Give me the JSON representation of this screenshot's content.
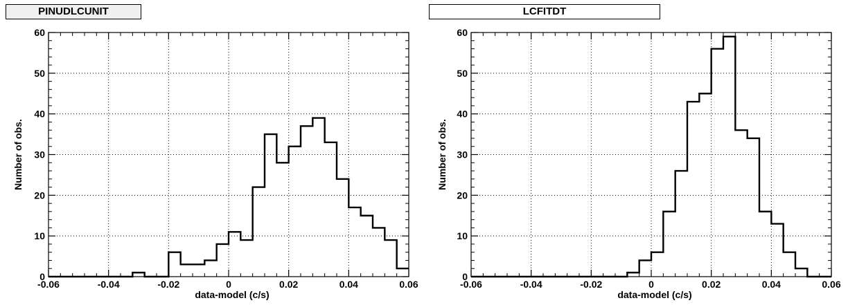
{
  "chart_data": [
    {
      "type": "bar",
      "title": "PINUDLCUNIT",
      "xlabel": "data-model (c/s)",
      "ylabel": "Number of obs.",
      "xlim": [
        -0.06,
        0.06
      ],
      "ylim": [
        0,
        60
      ],
      "xticks": [
        -0.06,
        -0.04,
        -0.02,
        0,
        0.02,
        0.04,
        0.06
      ],
      "xtick_labels": [
        "-0.06",
        "-0.04",
        "-0.02",
        "0",
        "0.02",
        "0.04",
        "0.06"
      ],
      "yticks": [
        0,
        10,
        20,
        30,
        40,
        50,
        60
      ],
      "ytick_labels": [
        "0",
        "10",
        "20",
        "30",
        "40",
        "50",
        "60"
      ],
      "grid": true,
      "bin_width": 0.004,
      "bin_start": -0.06,
      "values": [
        0,
        0,
        0,
        0,
        0,
        0,
        0,
        1,
        0,
        0,
        6,
        3,
        3,
        4,
        8,
        11,
        9,
        22,
        35,
        28,
        32,
        37,
        39,
        33,
        24,
        17,
        15,
        12,
        9,
        2
      ]
    },
    {
      "type": "bar",
      "title": "LCFITDT",
      "xlabel": "data-model (c/s)",
      "ylabel": "Number of obs.",
      "xlim": [
        -0.06,
        0.06
      ],
      "ylim": [
        0,
        60
      ],
      "xticks": [
        -0.06,
        -0.04,
        -0.02,
        0,
        0.02,
        0.04,
        0.06
      ],
      "xtick_labels": [
        "-0.06",
        "-0.04",
        "-0.02",
        "0",
        "0.02",
        "0.04",
        "0.06"
      ],
      "yticks": [
        0,
        10,
        20,
        30,
        40,
        50,
        60
      ],
      "ytick_labels": [
        "0",
        "10",
        "20",
        "30",
        "40",
        "50",
        "60"
      ],
      "grid": true,
      "bin_width": 0.004,
      "bin_start": -0.06,
      "values": [
        0,
        0,
        0,
        0,
        0,
        0,
        0,
        0,
        0,
        0,
        0,
        0,
        0,
        1,
        4,
        6,
        16,
        26,
        43,
        45,
        56,
        59,
        36,
        34,
        16,
        13,
        6,
        2,
        0,
        0
      ]
    }
  ]
}
